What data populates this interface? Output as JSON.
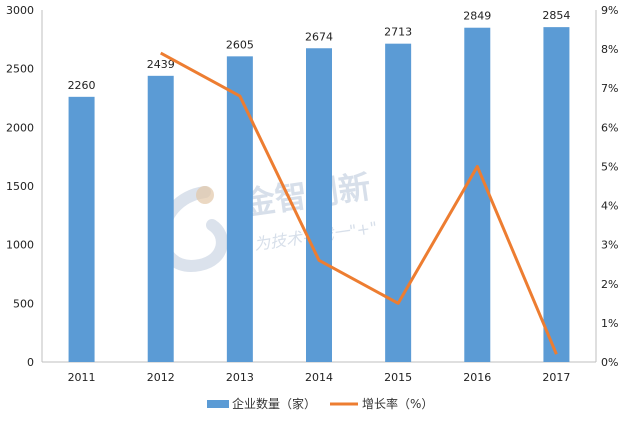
{
  "chart_data": {
    "type": "bar",
    "categories": [
      "2011",
      "2012",
      "2013",
      "2014",
      "2015",
      "2016",
      "2017"
    ],
    "series": [
      {
        "name": "企业数量（家）",
        "type": "bar",
        "axis": "left",
        "values": [
          2260,
          2439,
          2605,
          2674,
          2713,
          2849,
          2854
        ],
        "data_labels": [
          "2260",
          "2439",
          "2605",
          "2674",
          "2713",
          "2849",
          "2854"
        ],
        "color": "#5b9bd5"
      },
      {
        "name": "增长率（%）",
        "type": "line",
        "axis": "right",
        "values": [
          null,
          7.9,
          6.8,
          2.6,
          1.5,
          5.0,
          0.2
        ],
        "color": "#ed7d31"
      }
    ],
    "y_left": {
      "ylim": [
        0,
        3000
      ],
      "ticks": [
        "0",
        "500",
        "1000",
        "1500",
        "2000",
        "2500",
        "3000"
      ]
    },
    "y_right": {
      "ylim": [
        0,
        9
      ],
      "ticks": [
        "0%",
        "1%",
        "2%",
        "3%",
        "4%",
        "5%",
        "6%",
        "7%",
        "8%",
        "9%"
      ]
    },
    "grid": false,
    "legend": "bottom"
  },
  "watermark": {
    "title": "金智创新",
    "subtitle": "为技术寻找一\"+\""
  }
}
